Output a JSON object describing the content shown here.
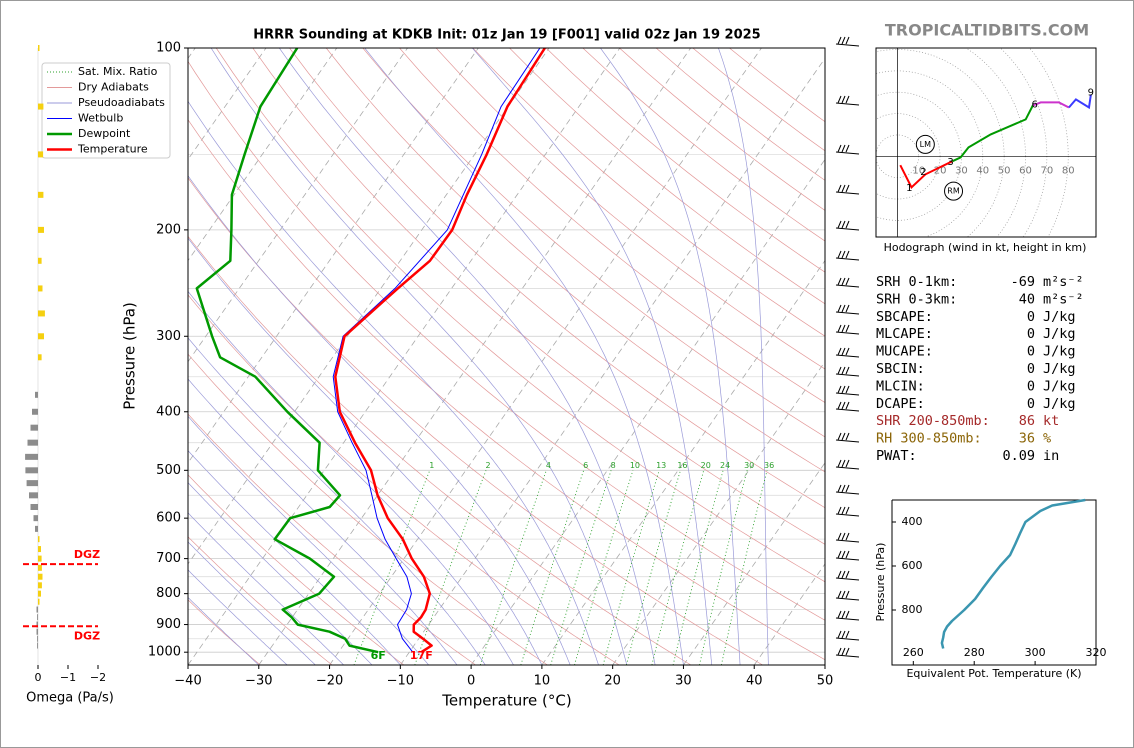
{
  "watermark": "TROPICALTIDBITS.COM",
  "chart_data": [
    {
      "type": "skewt",
      "title": "HRRR Sounding at KDKB Init: 01z Jan 19 [F001] valid 02z Jan 19 2025",
      "xlabel": "Temperature (°C)",
      "ylabel": "Pressure (hPa)",
      "log_y": true,
      "xlim": [
        -40,
        50
      ],
      "ylim": [
        1050,
        100
      ],
      "xticks": [
        {
          "value": -40,
          "label": "−40"
        },
        {
          "value": -30,
          "label": "−30"
        },
        {
          "value": -20,
          "label": "−20"
        },
        {
          "value": -10,
          "label": "−10"
        },
        0,
        10,
        20,
        30,
        40,
        50
      ],
      "yticks": [
        100,
        200,
        300,
        400,
        500,
        600,
        700,
        800,
        900,
        1000
      ],
      "yminor": [
        150,
        250,
        350,
        450,
        550,
        650,
        750,
        850,
        950
      ],
      "mixing_ratio_labels": [
        1,
        2,
        4,
        6,
        8,
        10,
        13,
        16,
        20,
        24,
        30,
        36
      ],
      "reference_lines": [
        {
          "name": "Sat. Mix. Ratio",
          "color": "#2ca02c",
          "style": "dotted"
        },
        {
          "name": "Dry Adiabats",
          "color": "#e39a9a",
          "style": "solid"
        },
        {
          "name": "Pseudoadiabats",
          "color": "#9a9ad8",
          "style": "solid"
        }
      ],
      "series": [
        {
          "name": "Wetbulb",
          "color": "#0000ff",
          "pressure": [
            1000,
            950,
            900,
            850,
            800,
            750,
            700,
            650,
            600,
            550,
            500,
            450,
            400,
            350,
            300,
            250,
            200,
            150,
            125,
            100
          ],
          "values": [
            -9.5,
            -12.3,
            -14.4,
            -14.6,
            -15.5,
            -17.8,
            -21.1,
            -24.6,
            -27.8,
            -30.8,
            -34.1,
            -38.8,
            -43.9,
            -48,
            -50.6,
            -48,
            -46.4,
            -49,
            -51,
            -51.3
          ]
        },
        {
          "name": "Dewpoint",
          "color": "#009900",
          "surface_label": "6F",
          "pressure": [
            1000,
            975,
            950,
            925,
            900,
            875,
            850,
            800,
            750,
            700,
            650,
            600,
            575,
            550,
            500,
            450,
            400,
            350,
            325,
            300,
            250,
            225,
            200,
            175,
            150,
            125,
            100
          ],
          "values": [
            -14.4,
            -19.1,
            -20.4,
            -23.3,
            -28.5,
            -30.1,
            -32.1,
            -28.5,
            -28.1,
            -33.3,
            -40.2,
            -40.1,
            -35.6,
            -35.3,
            -40.9,
            -43.4,
            -51,
            -59,
            -65.9,
            -69.1,
            -76,
            -74,
            -76.9,
            -80.3,
            -82.5,
            -85,
            -85.6
          ]
        },
        {
          "name": "Temperature",
          "color": "#ff0000",
          "surface_label": "17F",
          "pressure": [
            1000,
            975,
            950,
            925,
            900,
            875,
            850,
            800,
            750,
            700,
            650,
            600,
            550,
            500,
            450,
            400,
            350,
            300,
            250,
            225,
            200,
            175,
            150,
            125,
            100
          ],
          "values": [
            -8.3,
            -7.5,
            -9.4,
            -11.4,
            -12.1,
            -11.8,
            -11.9,
            -12.9,
            -15.4,
            -18.9,
            -22.1,
            -26.3,
            -30,
            -33.4,
            -38.4,
            -43.6,
            -47.7,
            -50.4,
            -47.6,
            -45.8,
            -45.7,
            -47.1,
            -48.3,
            -50.1,
            -50.6
          ]
        }
      ]
    },
    {
      "type": "hbar",
      "xlabel": "Omega (Pa/s)",
      "xlim": [
        0.7,
        -2.2
      ],
      "ylim": [
        1050,
        100
      ],
      "xticks": [
        0,
        {
          "value": -1,
          "label": "−1"
        },
        {
          "value": -2,
          "label": "−2"
        }
      ],
      "colors": {
        "negative": "#f5d010",
        "positive": "#8c8c8c"
      },
      "y": [
        100,
        125,
        150,
        175,
        200,
        225,
        250,
        275,
        300,
        325,
        375,
        400,
        425,
        450,
        475,
        500,
        525,
        550,
        575,
        600,
        625,
        650,
        675,
        700,
        725,
        750,
        775,
        800,
        825,
        850,
        875,
        900,
        925,
        950,
        975
      ],
      "values": [
        -0.05,
        -0.18,
        -0.17,
        -0.18,
        -0.2,
        -0.12,
        -0.15,
        -0.23,
        -0.2,
        -0.12,
        0.1,
        0.2,
        0.25,
        0.35,
        0.43,
        0.42,
        0.38,
        0.3,
        0.25,
        0.15,
        0.1,
        -0.05,
        -0.1,
        -0.12,
        -0.13,
        -0.15,
        -0.13,
        -0.1,
        -0.05,
        0.05,
        0.03,
        0.05,
        0.05,
        0.03,
        0.03
      ],
      "dgz": [
        {
          "pressure": 715,
          "label": "DGZ",
          "color": "#ff0000"
        },
        {
          "pressure": 906,
          "label": "DGZ",
          "color": "#ff0000"
        }
      ]
    },
    {
      "type": "hodograph",
      "caption": "Hodograph (wind in kt, height in km)",
      "xlim": [
        -10,
        93
      ],
      "ylim": [
        -38,
        51
      ],
      "ring_ticks": [
        10,
        20,
        30,
        40,
        50,
        60,
        70,
        80
      ],
      "segments": [
        {
          "color": "#ff0000",
          "u": [
            1.4,
            6.6,
            13.1,
            25.8
          ],
          "v": [
            -4.2,
            -14.6,
            -8.5,
            -2.3
          ]
        },
        {
          "color": "#009900",
          "u": [
            25.8,
            29.6,
            33.3,
            43.7,
            60.1,
            63.4
          ],
          "v": [
            -2.3,
            -0.5,
            4.2,
            10.3,
            17.4,
            23.9
          ]
        },
        {
          "color": "#cc33cc",
          "u": [
            63.4,
            67.1,
            75.6,
            80.3
          ],
          "v": [
            23.9,
            25.4,
            25.4,
            23
          ]
        },
        {
          "color": "#3b3bff",
          "u": [
            80.3,
            83.6,
            89.7,
            90.6
          ],
          "v": [
            23,
            26.8,
            23,
            29.1
          ]
        }
      ],
      "height_labels": [
        {
          "value": 1,
          "u": 5.6,
          "v": -15
        },
        {
          "value": 2,
          "u": 12.2,
          "v": -7.5
        },
        {
          "value": 3,
          "u": 24.9,
          "v": -2.8
        },
        {
          "value": 6,
          "u": 64.3,
          "v": 24.4
        },
        {
          "value": 9,
          "u": 90.6,
          "v": 30
        }
      ],
      "storm_motion": [
        {
          "label": "LM",
          "u": 13.1,
          "v": 5.6
        },
        {
          "label": "RM",
          "u": 26.3,
          "v": -16.4
        }
      ]
    },
    {
      "type": "line",
      "xlabel": "Equivalent Pot. Temperature (K)",
      "ylabel": "Pressure (hPa)",
      "xlim": [
        253,
        320
      ],
      "ylim": [
        1050,
        300
      ],
      "xticks": [
        260,
        280,
        300,
        320
      ],
      "yticks": [
        400,
        600,
        800
      ],
      "color": "#3a96b0",
      "y": [
        975,
        950,
        925,
        900,
        875,
        850,
        800,
        750,
        700,
        650,
        600,
        550,
        500,
        450,
        400,
        350,
        325,
        300
      ],
      "values": [
        269.8,
        269.4,
        269.8,
        270.1,
        271.1,
        272.7,
        276.7,
        280.3,
        282.9,
        285.6,
        288.5,
        291.8,
        293.5,
        295.1,
        296.8,
        301.7,
        305.6,
        316.5
      ]
    }
  ],
  "indices": {
    "rows": [
      {
        "label": "SRH 0-1km:",
        "value": -69,
        "unit": "m²s⁻²"
      },
      {
        "label": "SRH 0-3km:",
        "value": 40,
        "unit": "m²s⁻²"
      },
      {
        "label": "SBCAPE:",
        "value": 0,
        "unit": "J/kg"
      },
      {
        "label": "MLCAPE:",
        "value": 0,
        "unit": "J/kg"
      },
      {
        "label": "MUCAPE:",
        "value": 0,
        "unit": "J/kg"
      },
      {
        "label": "SBCIN:",
        "value": 0,
        "unit": "J/kg"
      },
      {
        "label": "MLCIN:",
        "value": 0,
        "unit": "J/kg"
      },
      {
        "label": "DCAPE:",
        "value": 0,
        "unit": "J/kg"
      },
      {
        "label": "SHR 200-850mb:",
        "value": 86,
        "unit": "kt",
        "color": "#a52a2a"
      },
      {
        "label": "RH 300-850mb:",
        "value": 36,
        "unit": "%",
        "color": "#8b6508"
      },
      {
        "label": "PWAT:",
        "value": 0.09,
        "unit": "in"
      }
    ]
  }
}
